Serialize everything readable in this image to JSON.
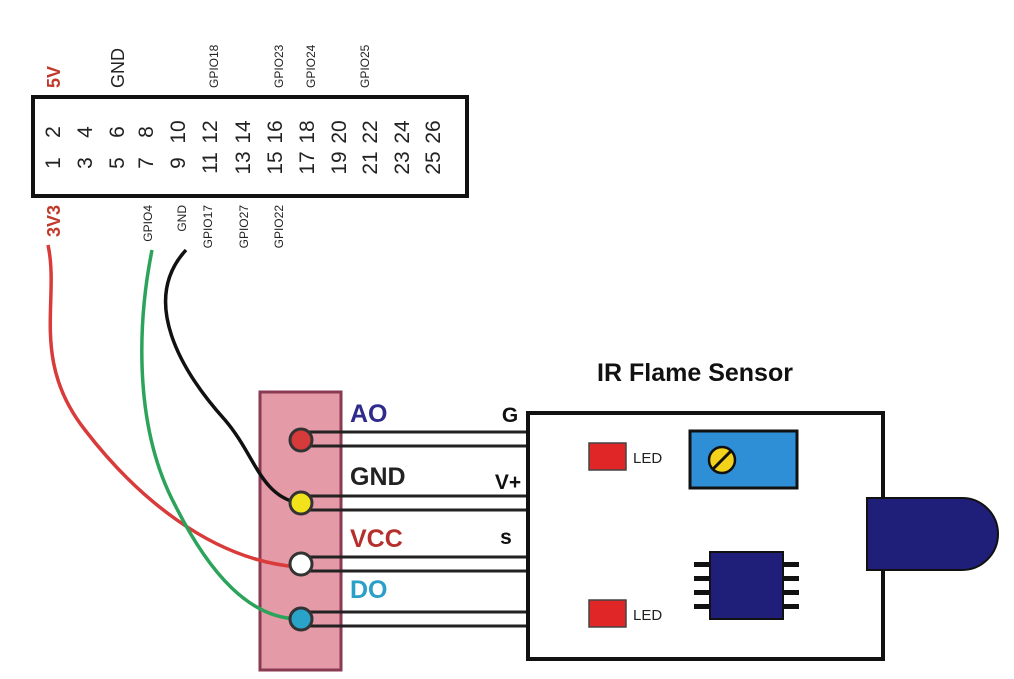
{
  "header": {
    "top_labels": [
      {
        "text": "5V",
        "color": "#c0392b"
      },
      {
        "text": "GND",
        "color": "#222222"
      },
      {
        "text": "GPIO18",
        "color": "#222222"
      },
      {
        "text": "GPIO23",
        "color": "#222222"
      },
      {
        "text": "GPIO24",
        "color": "#222222"
      },
      {
        "text": "GPIO25",
        "color": "#222222"
      }
    ],
    "bottom_labels": [
      {
        "text": "3V3",
        "color": "#c0392b"
      },
      {
        "text": "GPIO4",
        "color": "#222222"
      },
      {
        "text": "GND",
        "color": "#222222"
      },
      {
        "text": "GPIO17",
        "color": "#222222"
      },
      {
        "text": "GPIO27",
        "color": "#222222"
      },
      {
        "text": "GPIO22",
        "color": "#222222"
      }
    ],
    "even_pins": [
      "2",
      "4",
      "6",
      "8",
      "10",
      "12",
      "14",
      "16",
      "18",
      "20",
      "22",
      "24",
      "26"
    ],
    "odd_pins": [
      "1",
      "3",
      "5",
      "7",
      "9",
      "11",
      "13",
      "15",
      "17",
      "19",
      "21",
      "23",
      "25"
    ]
  },
  "connector": {
    "pins": [
      {
        "label": "AO",
        "label_color": "#2e2b8a",
        "dot_color": "#d63a3a"
      },
      {
        "label": "GND",
        "label_color": "#222222",
        "dot_color": "#f2e21b"
      },
      {
        "label": "VCC",
        "label_color": "#b5302c",
        "dot_color": "#ffffff"
      },
      {
        "label": "DO",
        "label_color": "#2a9fc7",
        "dot_color": "#2aa3c9"
      }
    ],
    "body_color": "#e59aa8"
  },
  "sensor": {
    "title": "IR Flame Sensor",
    "pin_labels": [
      "G",
      "V+",
      "s"
    ],
    "led_top_label": "LED",
    "led_bottom_label": "LED",
    "led_color": "#e02626",
    "pot_color": "#2f8fd6",
    "ic_color": "#1f1f7a",
    "ir_color": "#1f1f7a"
  },
  "wires": {
    "vcc_color": "#d93a3a",
    "gpio_color": "#2ca35a",
    "gnd_color": "#111111"
  },
  "icons": [
    "potentiometer-icon",
    "ic-chip-icon",
    "ir-led-icon"
  ]
}
